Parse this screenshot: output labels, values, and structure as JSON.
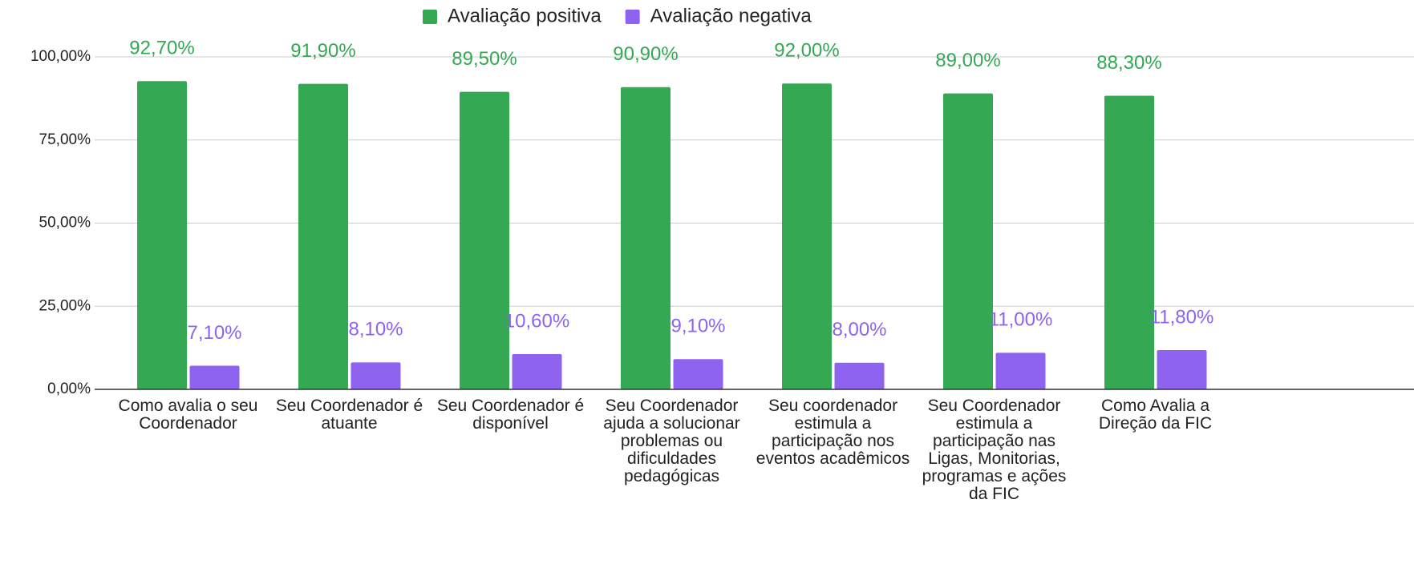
{
  "chart_data": {
    "type": "bar",
    "categories": [
      "Como avalia o seu Coordenador",
      "Seu Coordenador é atuante",
      "Seu Coordenador é disponível",
      "Seu Coordenador ajuda a solucionar problemas ou dificuldades pedagógicas",
      "Seu coordenador estimula a participação nos eventos acadêmicos",
      "Seu Coordenador estimula a participação nas Ligas, Monitorias, programas e ações da FIC",
      "Como Avalia a Direção da FIC"
    ],
    "series": [
      {
        "name": "Avaliação positiva",
        "color": "#34a853",
        "values": [
          92.7,
          91.9,
          89.5,
          90.9,
          92.0,
          89.0,
          88.3
        ],
        "value_labels": [
          "92,70%",
          "91,90%",
          "89,50%",
          "90,90%",
          "92,00%",
          "89,00%",
          "88,30%"
        ]
      },
      {
        "name": "Avaliação negativa",
        "color": "#8e63f0",
        "values": [
          7.1,
          8.1,
          10.6,
          9.1,
          8.0,
          11.0,
          11.8
        ],
        "value_labels": [
          "7,10%",
          "8,10%",
          "10,60%",
          "9,10%",
          "8,00%",
          "11,00%",
          "11,80%"
        ]
      }
    ],
    "ylim": [
      0,
      100
    ],
    "yticks": [
      {
        "value": 0,
        "label": "0,00%"
      },
      {
        "value": 25,
        "label": "25,00%"
      },
      {
        "value": 50,
        "label": "50,00%"
      },
      {
        "value": 75,
        "label": "75,00%"
      },
      {
        "value": 100,
        "label": "100,00%"
      }
    ],
    "grid": true,
    "legend": "top"
  }
}
